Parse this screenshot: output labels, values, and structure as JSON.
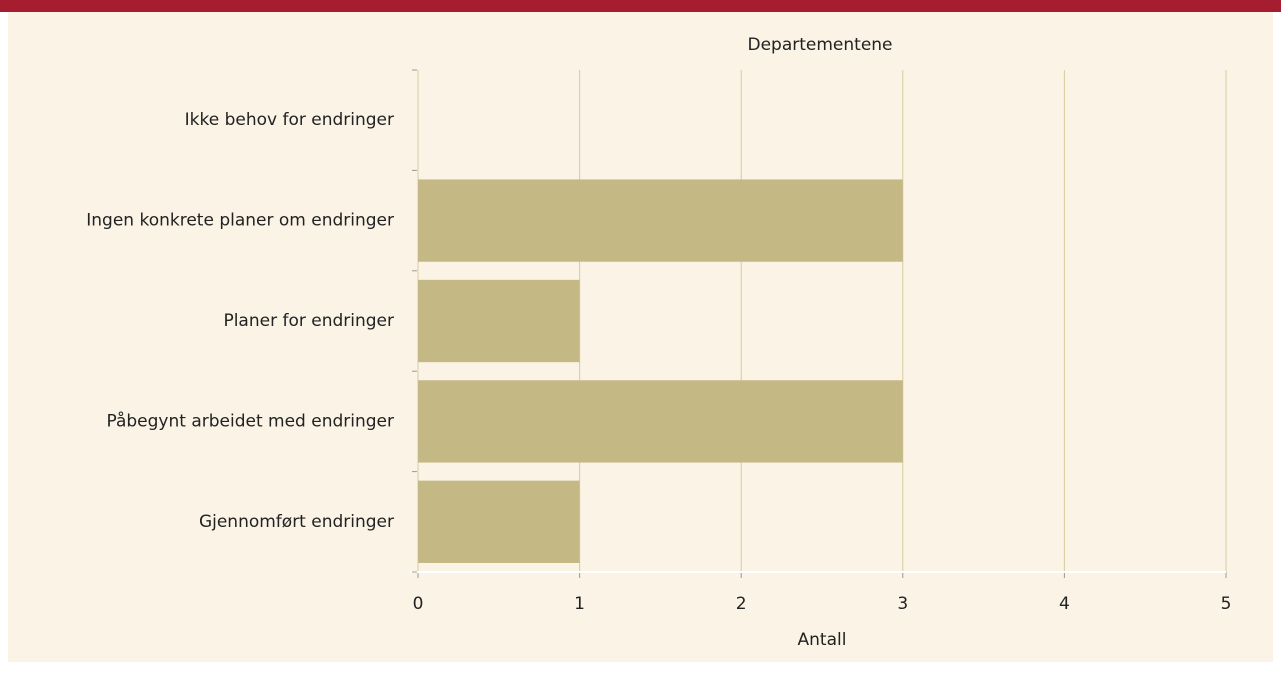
{
  "chart_data": {
    "type": "barh",
    "title": "Departementene",
    "categories": [
      "Ikke behov for endringer",
      "Ingen konkrete planer om endringer",
      "Planer for endringer",
      "Påbegynt arbeidet med endringer",
      "Gjennomført endringer"
    ],
    "values": [
      0,
      3,
      1,
      3,
      1
    ],
    "color": "#c4b985",
    "xlabel": "Antall",
    "xlim": [
      0,
      5
    ],
    "xticks": [
      0,
      1,
      2,
      3,
      4,
      5
    ],
    "grid": true
  }
}
